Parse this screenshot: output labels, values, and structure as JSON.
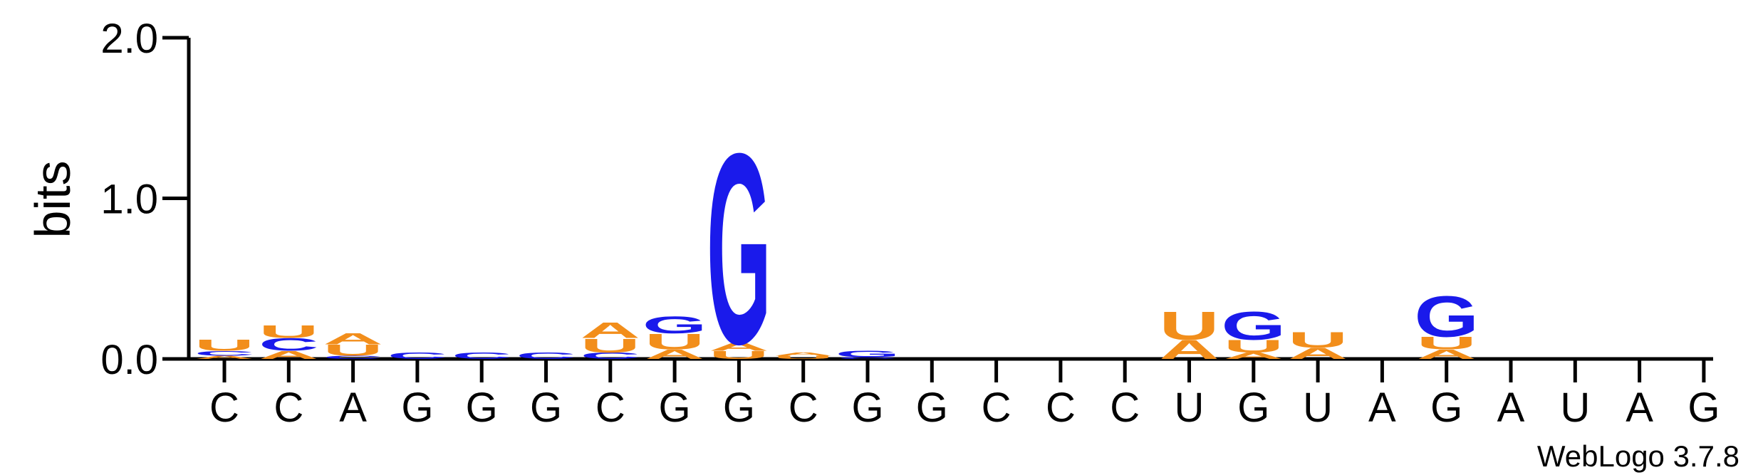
{
  "chart_data": {
    "type": "sequence-logo",
    "ylabel": "bits",
    "ylim": [
      0,
      2.0
    ],
    "yticks": [
      "0.0",
      "1.0",
      "2.0"
    ],
    "credit": "WebLogo 3.7.8",
    "colors": {
      "A": "#f28e1b",
      "U": "#f28e1b",
      "C": "#1a1aeb",
      "G": "#1a1aeb"
    },
    "positions": [
      {
        "label": "C",
        "stack": [
          [
            "A",
            0.02
          ],
          [
            "C",
            0.03
          ],
          [
            "U",
            0.07
          ]
        ]
      },
      {
        "label": "C",
        "stack": [
          [
            "A",
            0.05
          ],
          [
            "C",
            0.08
          ],
          [
            "U",
            0.08
          ]
        ]
      },
      {
        "label": "A",
        "stack": [
          [
            "C",
            0.02
          ],
          [
            "U",
            0.07
          ],
          [
            "A",
            0.07
          ]
        ]
      },
      {
        "label": "G",
        "stack": [
          [
            "C",
            0.04
          ]
        ]
      },
      {
        "label": "G",
        "stack": [
          [
            "C",
            0.04
          ]
        ]
      },
      {
        "label": "G",
        "stack": [
          [
            "C",
            0.04
          ]
        ]
      },
      {
        "label": "C",
        "stack": [
          [
            "C",
            0.04
          ],
          [
            "U",
            0.09
          ],
          [
            "A",
            0.1
          ]
        ]
      },
      {
        "label": "G",
        "stack": [
          [
            "A",
            0.06
          ],
          [
            "U",
            0.1
          ],
          [
            "G",
            0.11
          ]
        ]
      },
      {
        "label": "G",
        "stack": [
          [
            "U",
            0.05
          ],
          [
            "A",
            0.05
          ],
          [
            "G",
            1.22
          ]
        ]
      },
      {
        "label": "C",
        "stack": [
          [
            "U",
            0.02
          ],
          [
            "A",
            0.02
          ]
        ]
      },
      {
        "label": "G",
        "stack": [
          [
            "C",
            0.01
          ],
          [
            "G",
            0.04
          ]
        ]
      },
      {
        "label": "G",
        "stack": []
      },
      {
        "label": "C",
        "stack": []
      },
      {
        "label": "C",
        "stack": []
      },
      {
        "label": "C",
        "stack": []
      },
      {
        "label": "U",
        "stack": [
          [
            "A",
            0.12
          ],
          [
            "U",
            0.18
          ]
        ]
      },
      {
        "label": "G",
        "stack": [
          [
            "A",
            0.04
          ],
          [
            "U",
            0.08
          ],
          [
            "G",
            0.18
          ]
        ]
      },
      {
        "label": "U",
        "stack": [
          [
            "A",
            0.07
          ],
          [
            "U",
            0.1
          ]
        ]
      },
      {
        "label": "A",
        "stack": []
      },
      {
        "label": "G",
        "stack": [
          [
            "A",
            0.06
          ],
          [
            "U",
            0.08
          ],
          [
            "G",
            0.26
          ]
        ]
      },
      {
        "label": "A",
        "stack": []
      },
      {
        "label": "U",
        "stack": []
      },
      {
        "label": "A",
        "stack": []
      },
      {
        "label": "G",
        "stack": []
      }
    ]
  }
}
